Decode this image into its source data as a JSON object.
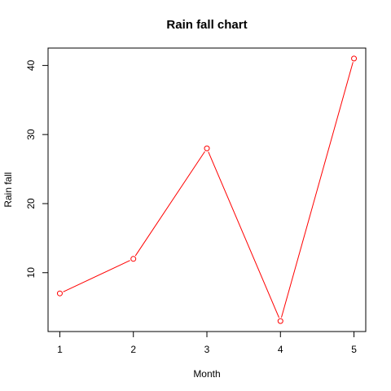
{
  "chart_data": {
    "type": "line",
    "title": "Rain fall chart",
    "xlabel": "Month",
    "ylabel": "Rain fall",
    "x": [
      1,
      2,
      3,
      4,
      5
    ],
    "series": [
      {
        "values": [
          7,
          12,
          28,
          3,
          41
        ],
        "color": "#ff0000",
        "marker": "open-circle"
      }
    ],
    "xticks": [
      "1",
      "2",
      "3",
      "4",
      "5"
    ],
    "yticks": [
      "10",
      "20",
      "30",
      "40"
    ],
    "xlim": [
      0.84,
      5.16
    ],
    "ylim": [
      1.48,
      42.52
    ],
    "grid": false,
    "legend": "none"
  }
}
